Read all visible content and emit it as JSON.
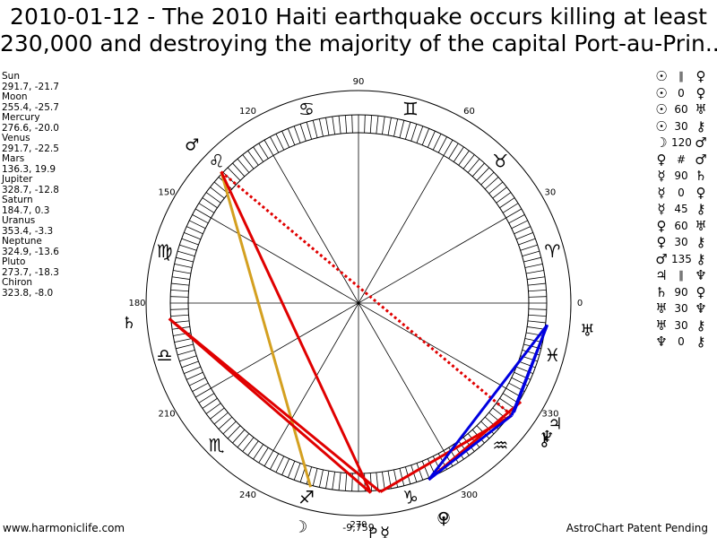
{
  "title": {
    "line1": "2010-01-12 - The 2010 Haiti earthquake occurs killing at least",
    "line2": "230,000 and destroying the majority of the capital Port-au-Prin..."
  },
  "planets": [
    {
      "name": "Sun",
      "coords": "291.7, -21.7"
    },
    {
      "name": "Moon",
      "coords": "255.4, -25.7"
    },
    {
      "name": "Mercury",
      "coords": "276.6, -20.0"
    },
    {
      "name": "Venus",
      "coords": "291.7, -22.5"
    },
    {
      "name": "Mars",
      "coords": "136.3, 19.9"
    },
    {
      "name": "Jupiter",
      "coords": "328.7, -12.8"
    },
    {
      "name": "Saturn",
      "coords": "184.7, 0.3"
    },
    {
      "name": "Uranus",
      "coords": "353.4, -3.3"
    },
    {
      "name": "Neptune",
      "coords": "324.9, -13.6"
    },
    {
      "name": "Pluto",
      "coords": "273.7, -18.3"
    },
    {
      "name": "Chiron",
      "coords": "323.8, -8.0"
    }
  ],
  "aspects": [
    {
      "p1": "☉",
      "type": "∥",
      "p2": "♀"
    },
    {
      "p1": "☉",
      "type": "0",
      "p2": "♀"
    },
    {
      "p1": "☉",
      "type": "60",
      "p2": "♅"
    },
    {
      "p1": "☉",
      "type": "30",
      "p2": "⚷"
    },
    {
      "p1": "☽",
      "type": "120",
      "p2": "♂"
    },
    {
      "p1": "♀",
      "type": "#",
      "p2": "♂"
    },
    {
      "p1": "☿",
      "type": "90",
      "p2": "♄"
    },
    {
      "p1": "☿",
      "type": "0",
      "p2": "♀"
    },
    {
      "p1": "☿",
      "type": "45",
      "p2": "⚷"
    },
    {
      "p1": "♀",
      "type": "60",
      "p2": "♅"
    },
    {
      "p1": "♀",
      "type": "30",
      "p2": "⚷"
    },
    {
      "p1": "♂",
      "type": "135",
      "p2": "⚷"
    },
    {
      "p1": "♃",
      "type": "∥",
      "p2": "♆"
    },
    {
      "p1": "♄",
      "type": "90",
      "p2": "♀"
    },
    {
      "p1": "♅",
      "type": "30",
      "p2": "♆"
    },
    {
      "p1": "♅",
      "type": "30",
      "p2": "⚷"
    },
    {
      "p1": "♆",
      "type": "0",
      "p2": "⚷"
    }
  ],
  "wheel": {
    "degree_labels": [
      {
        "deg": 0,
        "text": "0"
      },
      {
        "deg": 30,
        "text": "30"
      },
      {
        "deg": 60,
        "text": "60"
      },
      {
        "deg": 90,
        "text": "90"
      },
      {
        "deg": 120,
        "text": "120"
      },
      {
        "deg": 150,
        "text": "150"
      },
      {
        "deg": 180,
        "text": "180"
      },
      {
        "deg": 210,
        "text": "210"
      },
      {
        "deg": 240,
        "text": "240"
      },
      {
        "deg": 270,
        "text": "270"
      },
      {
        "deg": 300,
        "text": "300"
      },
      {
        "deg": 330,
        "text": "330"
      }
    ],
    "signs": [
      {
        "deg": 15,
        "glyph": "♈"
      },
      {
        "deg": 45,
        "glyph": "♉"
      },
      {
        "deg": 75,
        "glyph": "♊"
      },
      {
        "deg": 105,
        "glyph": "♋"
      },
      {
        "deg": 135,
        "glyph": "♌"
      },
      {
        "deg": 165,
        "glyph": "♍"
      },
      {
        "deg": 195,
        "glyph": "♎"
      },
      {
        "deg": 225,
        "glyph": "♏"
      },
      {
        "deg": 255,
        "glyph": "♐"
      },
      {
        "deg": 285,
        "glyph": "♑"
      },
      {
        "deg": 315,
        "glyph": "♒"
      },
      {
        "deg": 345,
        "glyph": "♓"
      }
    ],
    "planet_marks": [
      {
        "id": "sun",
        "deg": 291.7,
        "glyph": "☉"
      },
      {
        "id": "moon",
        "deg": 255.4,
        "glyph": "☽"
      },
      {
        "id": "mercury",
        "deg": 276.6,
        "glyph": "☿"
      },
      {
        "id": "venus",
        "deg": 291.7,
        "glyph": "♀"
      },
      {
        "id": "mars",
        "deg": 136.3,
        "glyph": "♂"
      },
      {
        "id": "jupiter",
        "deg": 328.7,
        "glyph": "♃"
      },
      {
        "id": "saturn",
        "deg": 184.7,
        "glyph": "♄"
      },
      {
        "id": "uranus",
        "deg": 353.4,
        "glyph": "♅"
      },
      {
        "id": "neptune",
        "deg": 324.9,
        "glyph": "♆"
      },
      {
        "id": "pluto",
        "deg": 273.7,
        "glyph": "♇"
      },
      {
        "id": "chiron",
        "deg": 323.8,
        "glyph": "⚷"
      }
    ],
    "aspect_lines": [
      {
        "a": "mars",
        "b": "moon",
        "color": "#d4a020",
        "style": "solid"
      },
      {
        "a": "mars",
        "b": "pluto",
        "color": "#e00000",
        "style": "solid"
      },
      {
        "a": "mars",
        "b": "chiron",
        "color": "#e00000",
        "style": "dotted"
      },
      {
        "a": "saturn",
        "b": "pluto",
        "color": "#e00000",
        "style": "solid"
      },
      {
        "a": "saturn",
        "b": "mercury",
        "color": "#e00000",
        "style": "solid"
      },
      {
        "a": "mercury",
        "b": "chiron",
        "color": "#e00000",
        "style": "solid"
      },
      {
        "a": "sun",
        "b": "jupiter",
        "color": "#e00000",
        "style": "solid"
      },
      {
        "a": "sun",
        "b": "uranus",
        "color": "#0000e0",
        "style": "solid"
      },
      {
        "a": "uranus",
        "b": "neptune",
        "color": "#0000e0",
        "style": "solid"
      },
      {
        "a": "uranus",
        "b": "chiron",
        "color": "#0000e0",
        "style": "solid"
      },
      {
        "a": "sun",
        "b": "chiron",
        "color": "#0000e0",
        "style": "solid"
      }
    ],
    "bottom_value": "-9,759"
  },
  "footer": {
    "left": "www.harmoniclife.com",
    "right": "AstroChart Patent Pending"
  }
}
